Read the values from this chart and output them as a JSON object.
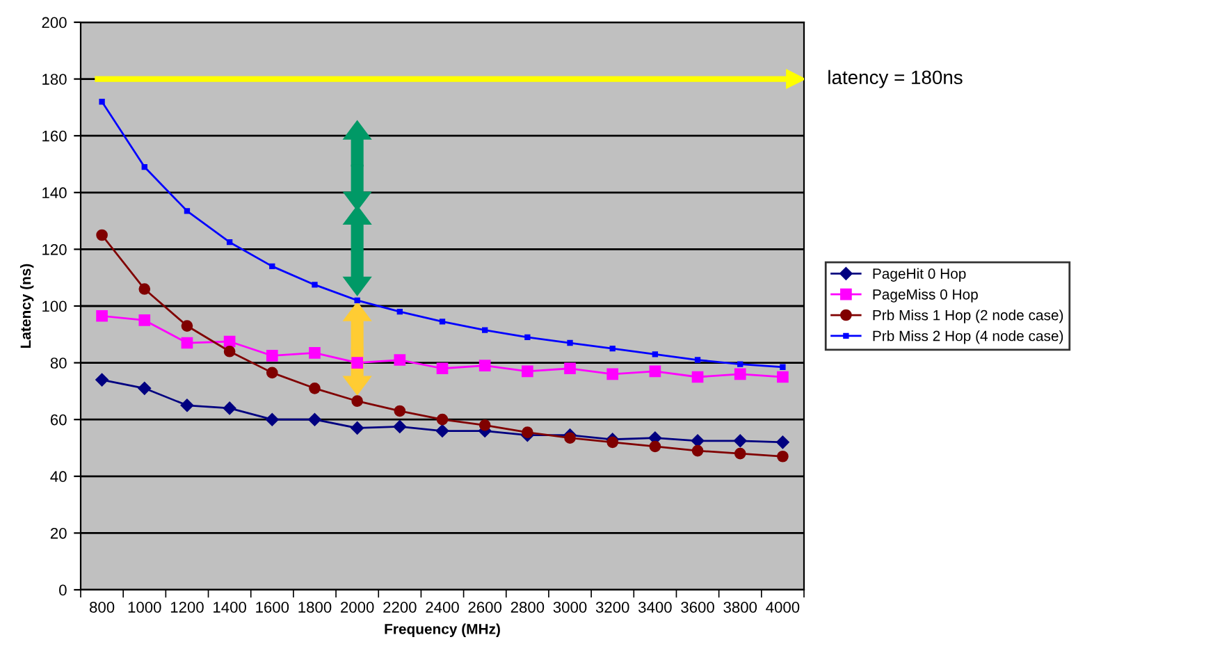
{
  "chart_data": {
    "type": "line",
    "xlabel": "Frequency (MHz)",
    "ylabel": "Latency (ns)",
    "categories": [
      "800",
      "1000",
      "1200",
      "1400",
      "1600",
      "1800",
      "2000",
      "2200",
      "2400",
      "2600",
      "2800",
      "3000",
      "3200",
      "3400",
      "3600",
      "3800",
      "4000"
    ],
    "series": [
      {
        "name": "PageHit 0 Hop",
        "color": "#000080",
        "marker": "diamond",
        "values": [
          74,
          71,
          65,
          64,
          60,
          60,
          57,
          57.5,
          56,
          56,
          54.5,
          54.5,
          53,
          53.5,
          52.5,
          52.5,
          52
        ]
      },
      {
        "name": "PageMiss 0 Hop",
        "color": "#ff00ff",
        "marker": "square",
        "values": [
          96.5,
          95,
          87,
          87.5,
          82.5,
          83.5,
          80,
          81,
          78,
          79,
          77,
          78,
          76,
          77,
          75,
          76,
          75
        ]
      },
      {
        "name": "Prb Miss 1 Hop (2 node case)",
        "color": "#800000",
        "marker": "circle",
        "values": [
          125,
          106,
          93,
          84,
          76.5,
          71,
          66.5,
          63,
          60,
          58,
          55.5,
          53.5,
          52,
          50.5,
          49,
          48,
          47
        ]
      },
      {
        "name": "Prb Miss 2 Hop (4 node case)",
        "color": "#0000ff",
        "marker": "square",
        "values": [
          172,
          149,
          133.5,
          122.5,
          114,
          107.5,
          102,
          98,
          94.5,
          91.5,
          89,
          87,
          85,
          83,
          81,
          79.5,
          78.5
        ]
      }
    ],
    "ylim": [
      0,
      200
    ],
    "yticks": [
      0,
      20,
      40,
      60,
      80,
      100,
      120,
      140,
      160,
      180,
      200
    ],
    "grid": "y",
    "legend": "right",
    "ref_lines": [
      {
        "axis": "y",
        "value": 180,
        "label": "latency = 180ns",
        "color": "#ffff00"
      }
    ]
  }
}
